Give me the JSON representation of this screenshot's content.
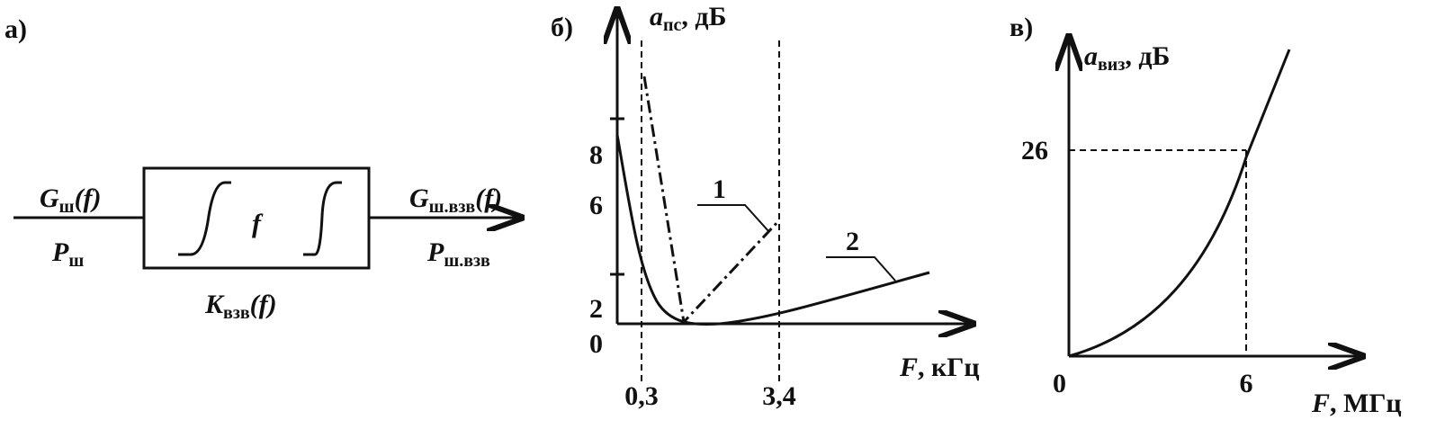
{
  "panel_a": {
    "label": "а)",
    "input": {
      "top": {
        "symbol": "G",
        "sub": "ш",
        "arg": "(f)"
      },
      "bottom": {
        "symbol": "P",
        "sub": "ш"
      }
    },
    "block": {
      "symbol": "f",
      "caption": {
        "symbol": "K",
        "sub": "взв",
        "arg": "(f)"
      }
    },
    "output": {
      "top": {
        "symbol": "G",
        "sub": "ш.взв",
        "arg": "(f)"
      },
      "bottom": {
        "symbol": "P",
        "sub": "ш.взв"
      }
    }
  },
  "panel_b": {
    "label": "б)",
    "y_axis": {
      "symbol": "a",
      "sub": "пс",
      "unit": ", дБ",
      "ticks": [
        "8",
        "6",
        "2",
        "0"
      ]
    },
    "x_axis": {
      "symbol": "F",
      "unit": ", кГц",
      "ticks": [
        "0,3",
        "3,4"
      ]
    },
    "curves": [
      "1",
      "2"
    ]
  },
  "panel_c": {
    "label": "в)",
    "y_axis": {
      "symbol": "a",
      "sub": "виз",
      "unit": ", дБ",
      "ticks": [
        "26"
      ]
    },
    "x_axis": {
      "symbol": "F",
      "unit": ", МГц",
      "ticks": [
        "0",
        "6"
      ]
    }
  }
}
